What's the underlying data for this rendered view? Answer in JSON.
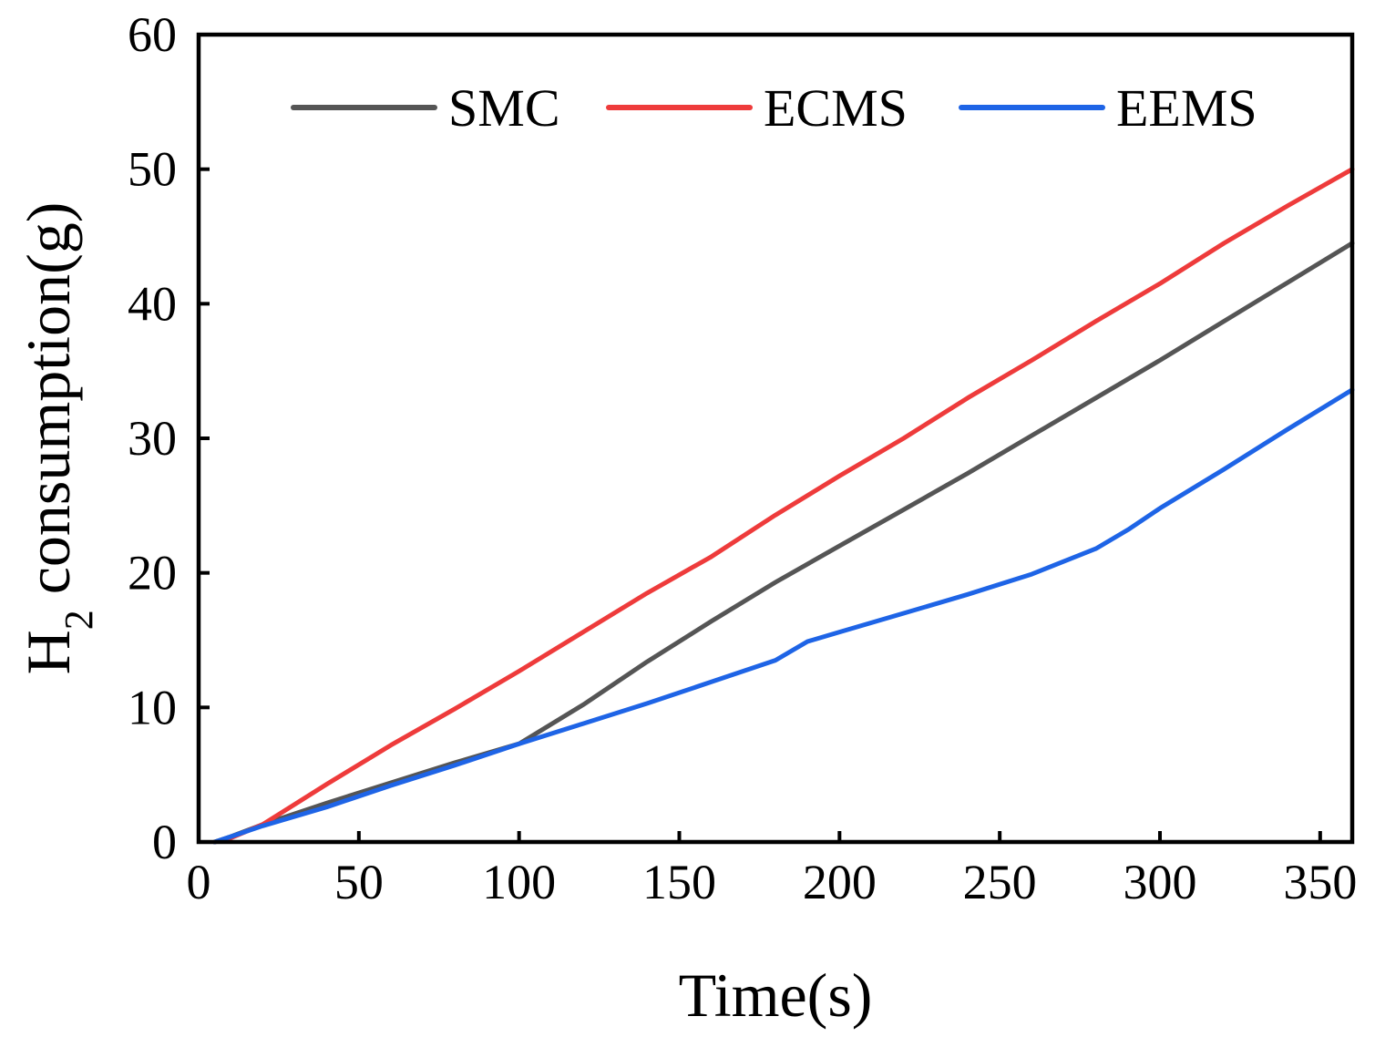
{
  "chart_data": {
    "type": "line",
    "title": "",
    "xlabel": "Time(s)",
    "ylabel": {
      "prefix": "H",
      "subscript": "2",
      "suffix": " consumption(g)"
    },
    "xlim": [
      0,
      360
    ],
    "ylim": [
      0,
      60
    ],
    "xticks": [
      0,
      50,
      100,
      150,
      200,
      250,
      300,
      350
    ],
    "yticks": [
      0,
      10,
      20,
      30,
      40,
      50,
      60
    ],
    "grid": false,
    "legend_position": "top",
    "series": [
      {
        "name": "SMC",
        "color": "#555555",
        "x": [
          5,
          10,
          20,
          40,
          60,
          80,
          100,
          120,
          140,
          160,
          180,
          200,
          220,
          240,
          260,
          280,
          300,
          320,
          340,
          360
        ],
        "y": [
          0,
          0.4,
          1.3,
          2.9,
          4.4,
          5.9,
          7.3,
          10.2,
          13.4,
          16.4,
          19.3,
          22.0,
          24.7,
          27.4,
          30.2,
          33.0,
          35.8,
          38.7,
          41.6,
          44.5
        ]
      },
      {
        "name": "ECMS",
        "color": "#ee3b3b",
        "x": [
          5,
          10,
          20,
          40,
          60,
          80,
          100,
          120,
          140,
          160,
          180,
          200,
          220,
          240,
          260,
          280,
          300,
          320,
          340,
          360
        ],
        "y": [
          0,
          0.3,
          1.3,
          4.3,
          7.2,
          9.9,
          12.7,
          15.6,
          18.5,
          21.2,
          24.3,
          27.2,
          30.0,
          33.0,
          35.8,
          38.7,
          41.5,
          44.5,
          47.3,
          50.0
        ]
      },
      {
        "name": "EEMS",
        "color": "#1e64e6",
        "x": [
          5,
          10,
          20,
          40,
          60,
          80,
          100,
          120,
          140,
          160,
          180,
          190,
          200,
          220,
          240,
          260,
          280,
          290,
          300,
          320,
          340,
          360
        ],
        "y": [
          0,
          0.4,
          1.2,
          2.6,
          4.2,
          5.7,
          7.3,
          8.8,
          10.3,
          11.9,
          13.5,
          14.9,
          15.6,
          17.0,
          18.4,
          19.9,
          21.8,
          23.2,
          24.8,
          27.7,
          30.7,
          33.6
        ]
      }
    ]
  }
}
